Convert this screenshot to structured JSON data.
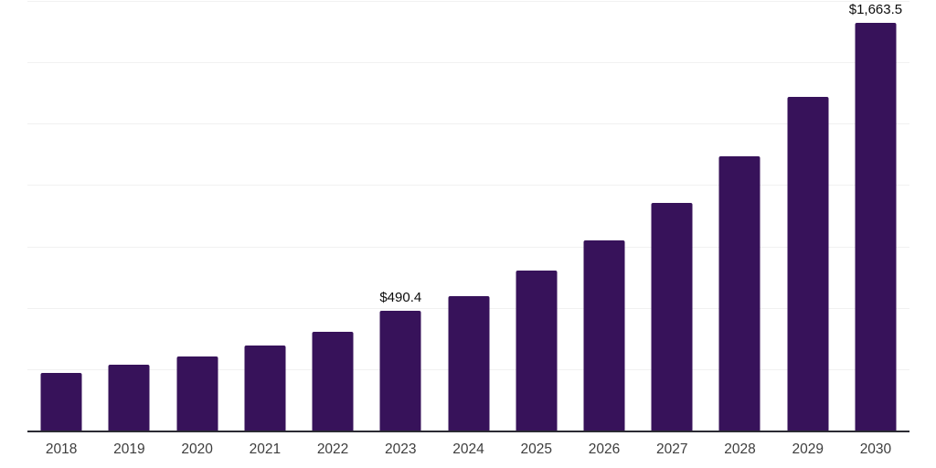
{
  "chart_data": {
    "type": "bar",
    "title": "",
    "xlabel": "",
    "ylabel": "",
    "categories": [
      "2018",
      "2019",
      "2020",
      "2021",
      "2022",
      "2023",
      "2024",
      "2025",
      "2026",
      "2027",
      "2028",
      "2029",
      "2030"
    ],
    "values": [
      240,
      271,
      306,
      351,
      406,
      490.4,
      552,
      654,
      778,
      931,
      1121,
      1363,
      1663.5
    ],
    "data_labels": [
      "",
      "",
      "",
      "",
      "",
      "$490.4",
      "",
      "",
      "",
      "",
      "",
      "",
      "$1,663.5"
    ],
    "ylim": [
      0,
      1750
    ],
    "gridline_step": 250,
    "grid": true,
    "legend": false,
    "y_tick_labels_visible": false,
    "colors": {
      "bar": "#37125a",
      "gridline": "#f1f1f1",
      "axis_line": "#2b2b33",
      "value_label": "#0c0c0c",
      "tick_label": "#3d3d3d",
      "background": "#ffffff"
    }
  }
}
